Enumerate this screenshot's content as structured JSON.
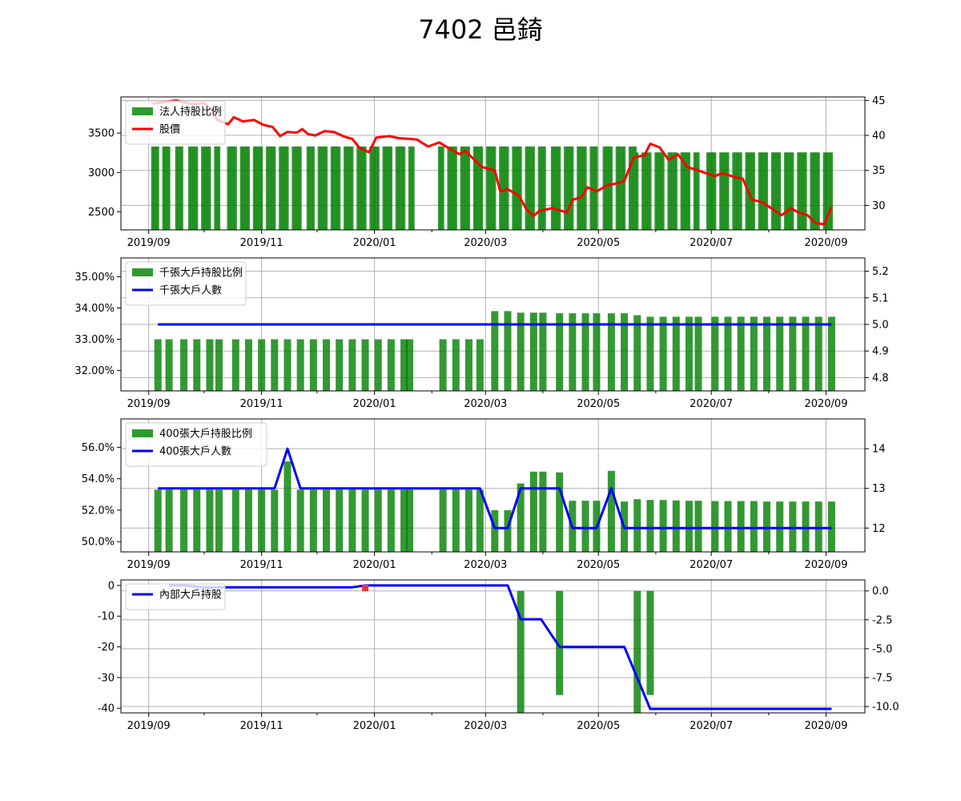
{
  "title": "7402 邑錡",
  "x_tick_labels": [
    "2019/09",
    "2019/11",
    "2020/01",
    "2020/03",
    "2020/05",
    "2020/07",
    "2020/09"
  ],
  "colors": {
    "bar": "#008000",
    "bar_legend": "#2e9b2e",
    "price": "#ff0000",
    "holders": "#0000ff",
    "insider_marker": "#ee3344"
  },
  "chart_data": [
    {
      "type": "bar+line",
      "id": "institutional",
      "left_axis": {
        "ylim": [
          2270,
          3960
        ],
        "ticks": [
          2500,
          3000,
          3500
        ],
        "tick_labels": [
          "2500",
          "3000",
          "3500"
        ]
      },
      "right_axis": {
        "ylim": [
          26.5,
          45.5
        ],
        "ticks": [
          30,
          35,
          40,
          45
        ],
        "tick_labels": [
          "30",
          "35",
          "40",
          "45"
        ]
      },
      "legend": {
        "position": "top-left",
        "entries": [
          {
            "kind": "bar",
            "label": "法人持股比例"
          },
          {
            "kind": "line",
            "label": "股價"
          }
        ]
      },
      "bars": {
        "from": "2019-09-03",
        "to": "2020-09-04",
        "gap_dates": [
          "2019-09-13",
          "2019-09-20",
          "2019-10-10",
          "2019-10-11",
          "2019-11-25",
          "2020-01-24",
          "2020-01-28",
          "2020-01-29",
          "2020-01-30",
          "2020-01-31",
          "2020-02-03",
          "2020-02-04",
          "2020-04-03",
          "2020-05-01",
          "2020-06-25",
          "2020-06-26"
        ],
        "segments": [
          {
            "from": "2019-09-03",
            "to": "2020-01-22",
            "value": 3330
          },
          {
            "from": "2020-02-05",
            "to": "2020-05-21",
            "value": 3330
          },
          {
            "from": "2020-05-22",
            "to": "2020-09-04",
            "value": 3255
          }
        ]
      },
      "line_name": "股價",
      "line": [
        [
          "2019-09-03",
          44.5
        ],
        [
          "2019-09-10",
          44.8
        ],
        [
          "2019-09-16",
          45.0
        ],
        [
          "2019-09-24",
          44.5
        ],
        [
          "2019-10-01",
          44.6
        ],
        [
          "2019-10-05",
          43.8
        ],
        [
          "2019-10-08",
          42.2
        ],
        [
          "2019-10-14",
          41.6
        ],
        [
          "2019-10-17",
          42.6
        ],
        [
          "2019-10-22",
          42.0
        ],
        [
          "2019-10-28",
          42.2
        ],
        [
          "2019-11-02",
          41.5
        ],
        [
          "2019-11-07",
          41.2
        ],
        [
          "2019-11-11",
          39.9
        ],
        [
          "2019-11-15",
          40.5
        ],
        [
          "2019-11-20",
          40.4
        ],
        [
          "2019-11-23",
          40.9
        ],
        [
          "2019-11-26",
          40.2
        ],
        [
          "2019-11-30",
          40.0
        ],
        [
          "2019-12-05",
          40.6
        ],
        [
          "2019-12-10",
          40.5
        ],
        [
          "2019-12-16",
          39.8
        ],
        [
          "2019-12-20",
          39.5
        ],
        [
          "2019-12-24",
          38.2
        ],
        [
          "2019-12-29",
          37.6
        ],
        [
          "2020-01-02",
          39.7
        ],
        [
          "2020-01-06",
          39.8
        ],
        [
          "2020-01-09",
          39.9
        ],
        [
          "2020-01-14",
          39.6
        ],
        [
          "2020-01-20",
          39.5
        ],
        [
          "2020-01-24",
          39.4
        ],
        [
          "2020-01-30",
          38.4
        ],
        [
          "2020-02-05",
          39.0
        ],
        [
          "2020-02-10",
          38.2
        ],
        [
          "2020-02-16",
          37.3
        ],
        [
          "2020-02-19",
          37.8
        ],
        [
          "2020-02-24",
          36.5
        ],
        [
          "2020-02-28",
          35.5
        ],
        [
          "2020-03-06",
          35.0
        ],
        [
          "2020-03-09",
          32.0
        ],
        [
          "2020-03-13",
          32.3
        ],
        [
          "2020-03-19",
          31.4
        ],
        [
          "2020-03-23",
          29.5
        ],
        [
          "2020-03-27",
          28.5
        ],
        [
          "2020-03-30",
          29.2
        ],
        [
          "2020-04-06",
          29.6
        ],
        [
          "2020-04-14",
          29.0
        ],
        [
          "2020-04-17",
          30.8
        ],
        [
          "2020-04-22",
          31.2
        ],
        [
          "2020-04-25",
          32.6
        ],
        [
          "2020-04-30",
          32.0
        ],
        [
          "2020-05-06",
          32.9
        ],
        [
          "2020-05-12",
          33.2
        ],
        [
          "2020-05-15",
          33.5
        ],
        [
          "2020-05-20",
          36.8
        ],
        [
          "2020-05-26",
          37.2
        ],
        [
          "2020-05-29",
          38.8
        ],
        [
          "2020-06-03",
          38.3
        ],
        [
          "2020-06-08",
          36.5
        ],
        [
          "2020-06-13",
          37.3
        ],
        [
          "2020-06-18",
          35.5
        ],
        [
          "2020-06-23",
          35.1
        ],
        [
          "2020-06-27",
          34.7
        ],
        [
          "2020-07-03",
          34.2
        ],
        [
          "2020-07-07",
          34.6
        ],
        [
          "2020-07-13",
          34.1
        ],
        [
          "2020-07-18",
          33.8
        ],
        [
          "2020-07-23",
          30.8
        ],
        [
          "2020-07-28",
          30.5
        ],
        [
          "2020-08-03",
          29.5
        ],
        [
          "2020-08-08",
          28.6
        ],
        [
          "2020-08-13",
          29.6
        ],
        [
          "2020-08-17",
          29.0
        ],
        [
          "2020-08-22",
          28.6
        ],
        [
          "2020-08-26",
          27.5
        ],
        [
          "2020-08-31",
          27.3
        ],
        [
          "2020-09-04",
          29.8
        ]
      ]
    },
    {
      "type": "bar+line",
      "id": "holders-1000",
      "left_axis": {
        "ylim": [
          31.35,
          35.6
        ],
        "ticks": [
          32,
          33,
          34,
          35
        ],
        "tick_labels": [
          "32.00%",
          "33.00%",
          "34.00%",
          "35.00%"
        ]
      },
      "right_axis": {
        "ylim": [
          4.75,
          5.25
        ],
        "ticks": [
          4.8,
          4.9,
          5.0,
          5.1,
          5.2
        ],
        "tick_labels": [
          "4.8",
          "4.9",
          "5.0",
          "5.1",
          "5.2"
        ]
      },
      "legend": {
        "position": "top-left",
        "entries": [
          {
            "kind": "bar",
            "label": "千張大戶持股比例"
          },
          {
            "kind": "line",
            "label": "千張大戶人數"
          }
        ]
      },
      "bars": [
        [
          "2019-09-06",
          33.0
        ],
        [
          "2019-09-12",
          33.0
        ],
        [
          "2019-09-20",
          33.0
        ],
        [
          "2019-09-27",
          33.0
        ],
        [
          "2019-10-04",
          33.0
        ],
        [
          "2019-10-09",
          33.0
        ],
        [
          "2019-10-18",
          33.0
        ],
        [
          "2019-10-25",
          33.0
        ],
        [
          "2019-11-01",
          33.0
        ],
        [
          "2019-11-08",
          33.0
        ],
        [
          "2019-11-15",
          33.0
        ],
        [
          "2019-11-22",
          33.0
        ],
        [
          "2019-11-29",
          33.0
        ],
        [
          "2019-12-06",
          33.0
        ],
        [
          "2019-12-13",
          33.0
        ],
        [
          "2019-12-20",
          33.0
        ],
        [
          "2019-12-27",
          33.0
        ],
        [
          "2020-01-03",
          33.0
        ],
        [
          "2020-01-10",
          33.0
        ],
        [
          "2020-01-17",
          33.0
        ],
        [
          "2020-01-20",
          33.0
        ],
        [
          "2020-02-07",
          33.0
        ],
        [
          "2020-02-14",
          33.0
        ],
        [
          "2020-02-21",
          33.0
        ],
        [
          "2020-02-27",
          33.0
        ],
        [
          "2020-03-06",
          33.9
        ],
        [
          "2020-03-13",
          33.9
        ],
        [
          "2020-03-20",
          33.85
        ],
        [
          "2020-03-27",
          33.85
        ],
        [
          "2020-04-01",
          33.85
        ],
        [
          "2020-04-10",
          33.83
        ],
        [
          "2020-04-17",
          33.83
        ],
        [
          "2020-04-24",
          33.83
        ],
        [
          "2020-04-30",
          33.83
        ],
        [
          "2020-05-08",
          33.83
        ],
        [
          "2020-05-15",
          33.83
        ],
        [
          "2020-05-22",
          33.77
        ],
        [
          "2020-05-29",
          33.72
        ],
        [
          "2020-06-05",
          33.72
        ],
        [
          "2020-06-12",
          33.72
        ],
        [
          "2020-06-19",
          33.72
        ],
        [
          "2020-06-24",
          33.72
        ],
        [
          "2020-07-03",
          33.72
        ],
        [
          "2020-07-10",
          33.72
        ],
        [
          "2020-07-17",
          33.72
        ],
        [
          "2020-07-24",
          33.72
        ],
        [
          "2020-07-31",
          33.72
        ],
        [
          "2020-08-07",
          33.72
        ],
        [
          "2020-08-14",
          33.72
        ],
        [
          "2020-08-21",
          33.72
        ],
        [
          "2020-08-28",
          33.72
        ],
        [
          "2020-09-04",
          33.72
        ]
      ],
      "line_name": "千張大戶人數",
      "line": [
        [
          "2019-09-06",
          5.0
        ],
        [
          "2020-09-04",
          5.0
        ]
      ]
    },
    {
      "type": "bar+line",
      "id": "holders-400",
      "left_axis": {
        "ylim": [
          49.35,
          57.8
        ],
        "ticks": [
          50,
          52,
          54,
          56
        ],
        "tick_labels": [
          "50.0%",
          "52.0%",
          "54.0%",
          "56.0%"
        ]
      },
      "right_axis": {
        "ylim": [
          11.4,
          14.75
        ],
        "ticks": [
          12,
          13,
          14
        ],
        "tick_labels": [
          "12",
          "13",
          "14"
        ]
      },
      "legend": {
        "position": "top-left",
        "entries": [
          {
            "kind": "bar",
            "label": "400張大戶持股比例"
          },
          {
            "kind": "line",
            "label": "400張大戶人數"
          }
        ]
      },
      "bars": [
        [
          "2019-09-06",
          53.3
        ],
        [
          "2019-09-12",
          53.3
        ],
        [
          "2019-09-20",
          53.3
        ],
        [
          "2019-09-27",
          53.3
        ],
        [
          "2019-10-04",
          53.3
        ],
        [
          "2019-10-09",
          53.3
        ],
        [
          "2019-10-18",
          53.3
        ],
        [
          "2019-10-25",
          53.3
        ],
        [
          "2019-11-01",
          53.3
        ],
        [
          "2019-11-08",
          53.3
        ],
        [
          "2019-11-15",
          55.1
        ],
        [
          "2019-11-22",
          53.3
        ],
        [
          "2019-11-29",
          53.3
        ],
        [
          "2019-12-06",
          53.3
        ],
        [
          "2019-12-13",
          53.3
        ],
        [
          "2019-12-20",
          53.3
        ],
        [
          "2019-12-27",
          53.3
        ],
        [
          "2020-01-03",
          53.3
        ],
        [
          "2020-01-10",
          53.3
        ],
        [
          "2020-01-17",
          53.3
        ],
        [
          "2020-01-20",
          53.3
        ],
        [
          "2020-02-07",
          53.3
        ],
        [
          "2020-02-14",
          53.3
        ],
        [
          "2020-02-21",
          53.3
        ],
        [
          "2020-02-27",
          53.3
        ],
        [
          "2020-03-06",
          52.0
        ],
        [
          "2020-03-13",
          52.0
        ],
        [
          "2020-03-20",
          53.7
        ],
        [
          "2020-03-27",
          54.45
        ],
        [
          "2020-04-01",
          54.45
        ],
        [
          "2020-04-10",
          54.4
        ],
        [
          "2020-04-17",
          52.6
        ],
        [
          "2020-04-24",
          52.6
        ],
        [
          "2020-04-30",
          52.6
        ],
        [
          "2020-05-08",
          54.5
        ],
        [
          "2020-05-15",
          52.55
        ],
        [
          "2020-05-22",
          52.7
        ],
        [
          "2020-05-29",
          52.65
        ],
        [
          "2020-06-05",
          52.65
        ],
        [
          "2020-06-12",
          52.62
        ],
        [
          "2020-06-19",
          52.6
        ],
        [
          "2020-06-24",
          52.6
        ],
        [
          "2020-07-03",
          52.58
        ],
        [
          "2020-07-10",
          52.58
        ],
        [
          "2020-07-17",
          52.58
        ],
        [
          "2020-07-24",
          52.58
        ],
        [
          "2020-07-31",
          52.55
        ],
        [
          "2020-08-07",
          52.55
        ],
        [
          "2020-08-14",
          52.55
        ],
        [
          "2020-08-21",
          52.55
        ],
        [
          "2020-08-28",
          52.55
        ],
        [
          "2020-09-04",
          52.55
        ]
      ],
      "line_name": "400張大戶人數",
      "line": [
        [
          "2019-09-06",
          13
        ],
        [
          "2019-11-08",
          13
        ],
        [
          "2019-11-15",
          14
        ],
        [
          "2019-11-22",
          13
        ],
        [
          "2020-02-27",
          13
        ],
        [
          "2020-03-06",
          12
        ],
        [
          "2020-03-13",
          12
        ],
        [
          "2020-03-20",
          13
        ],
        [
          "2020-04-10",
          13
        ],
        [
          "2020-04-17",
          12
        ],
        [
          "2020-04-30",
          12
        ],
        [
          "2020-05-08",
          13
        ],
        [
          "2020-05-15",
          12
        ],
        [
          "2020-09-04",
          12
        ]
      ]
    },
    {
      "type": "line+bar",
      "id": "insider",
      "left_axis": {
        "ylim": [
          -41.5,
          1.8
        ],
        "ticks": [
          0,
          -10,
          -20,
          -30,
          -40
        ],
        "tick_labels": [
          "0",
          "-10",
          "-20",
          "-30",
          "-40"
        ]
      },
      "right_axis": {
        "ylim": [
          -10.55,
          0.95
        ],
        "ticks": [
          0,
          -2.5,
          -5,
          -7.5,
          -10
        ],
        "tick_labels": [
          "0.0",
          "-2.5",
          "-5.0",
          "-7.5",
          "-10.0"
        ]
      },
      "legend": {
        "position": "top-left",
        "entries": [
          {
            "kind": "line",
            "label": "內部大戶持股"
          }
        ]
      },
      "line_name": "內部大戶持股",
      "line": [
        [
          "2019-09-12",
          0
        ],
        [
          "2019-09-20",
          0
        ],
        [
          "2019-10-01",
          -0.6
        ],
        [
          "2019-12-20",
          -0.6
        ],
        [
          "2019-12-27",
          0
        ],
        [
          "2020-03-13",
          0
        ],
        [
          "2020-03-20",
          -11
        ],
        [
          "2020-03-31",
          -11
        ],
        [
          "2020-04-10",
          -20
        ],
        [
          "2020-05-15",
          -20
        ],
        [
          "2020-05-29",
          -40.2
        ],
        [
          "2020-09-04",
          -40.2
        ]
      ],
      "bars": [
        [
          "2020-03-20",
          -11
        ],
        [
          "2020-04-10",
          -9
        ],
        [
          "2020-05-22",
          -11
        ],
        [
          "2020-05-29",
          -9
        ]
      ],
      "marker": {
        "date": "2019-12-27",
        "value": -0.8
      }
    }
  ]
}
